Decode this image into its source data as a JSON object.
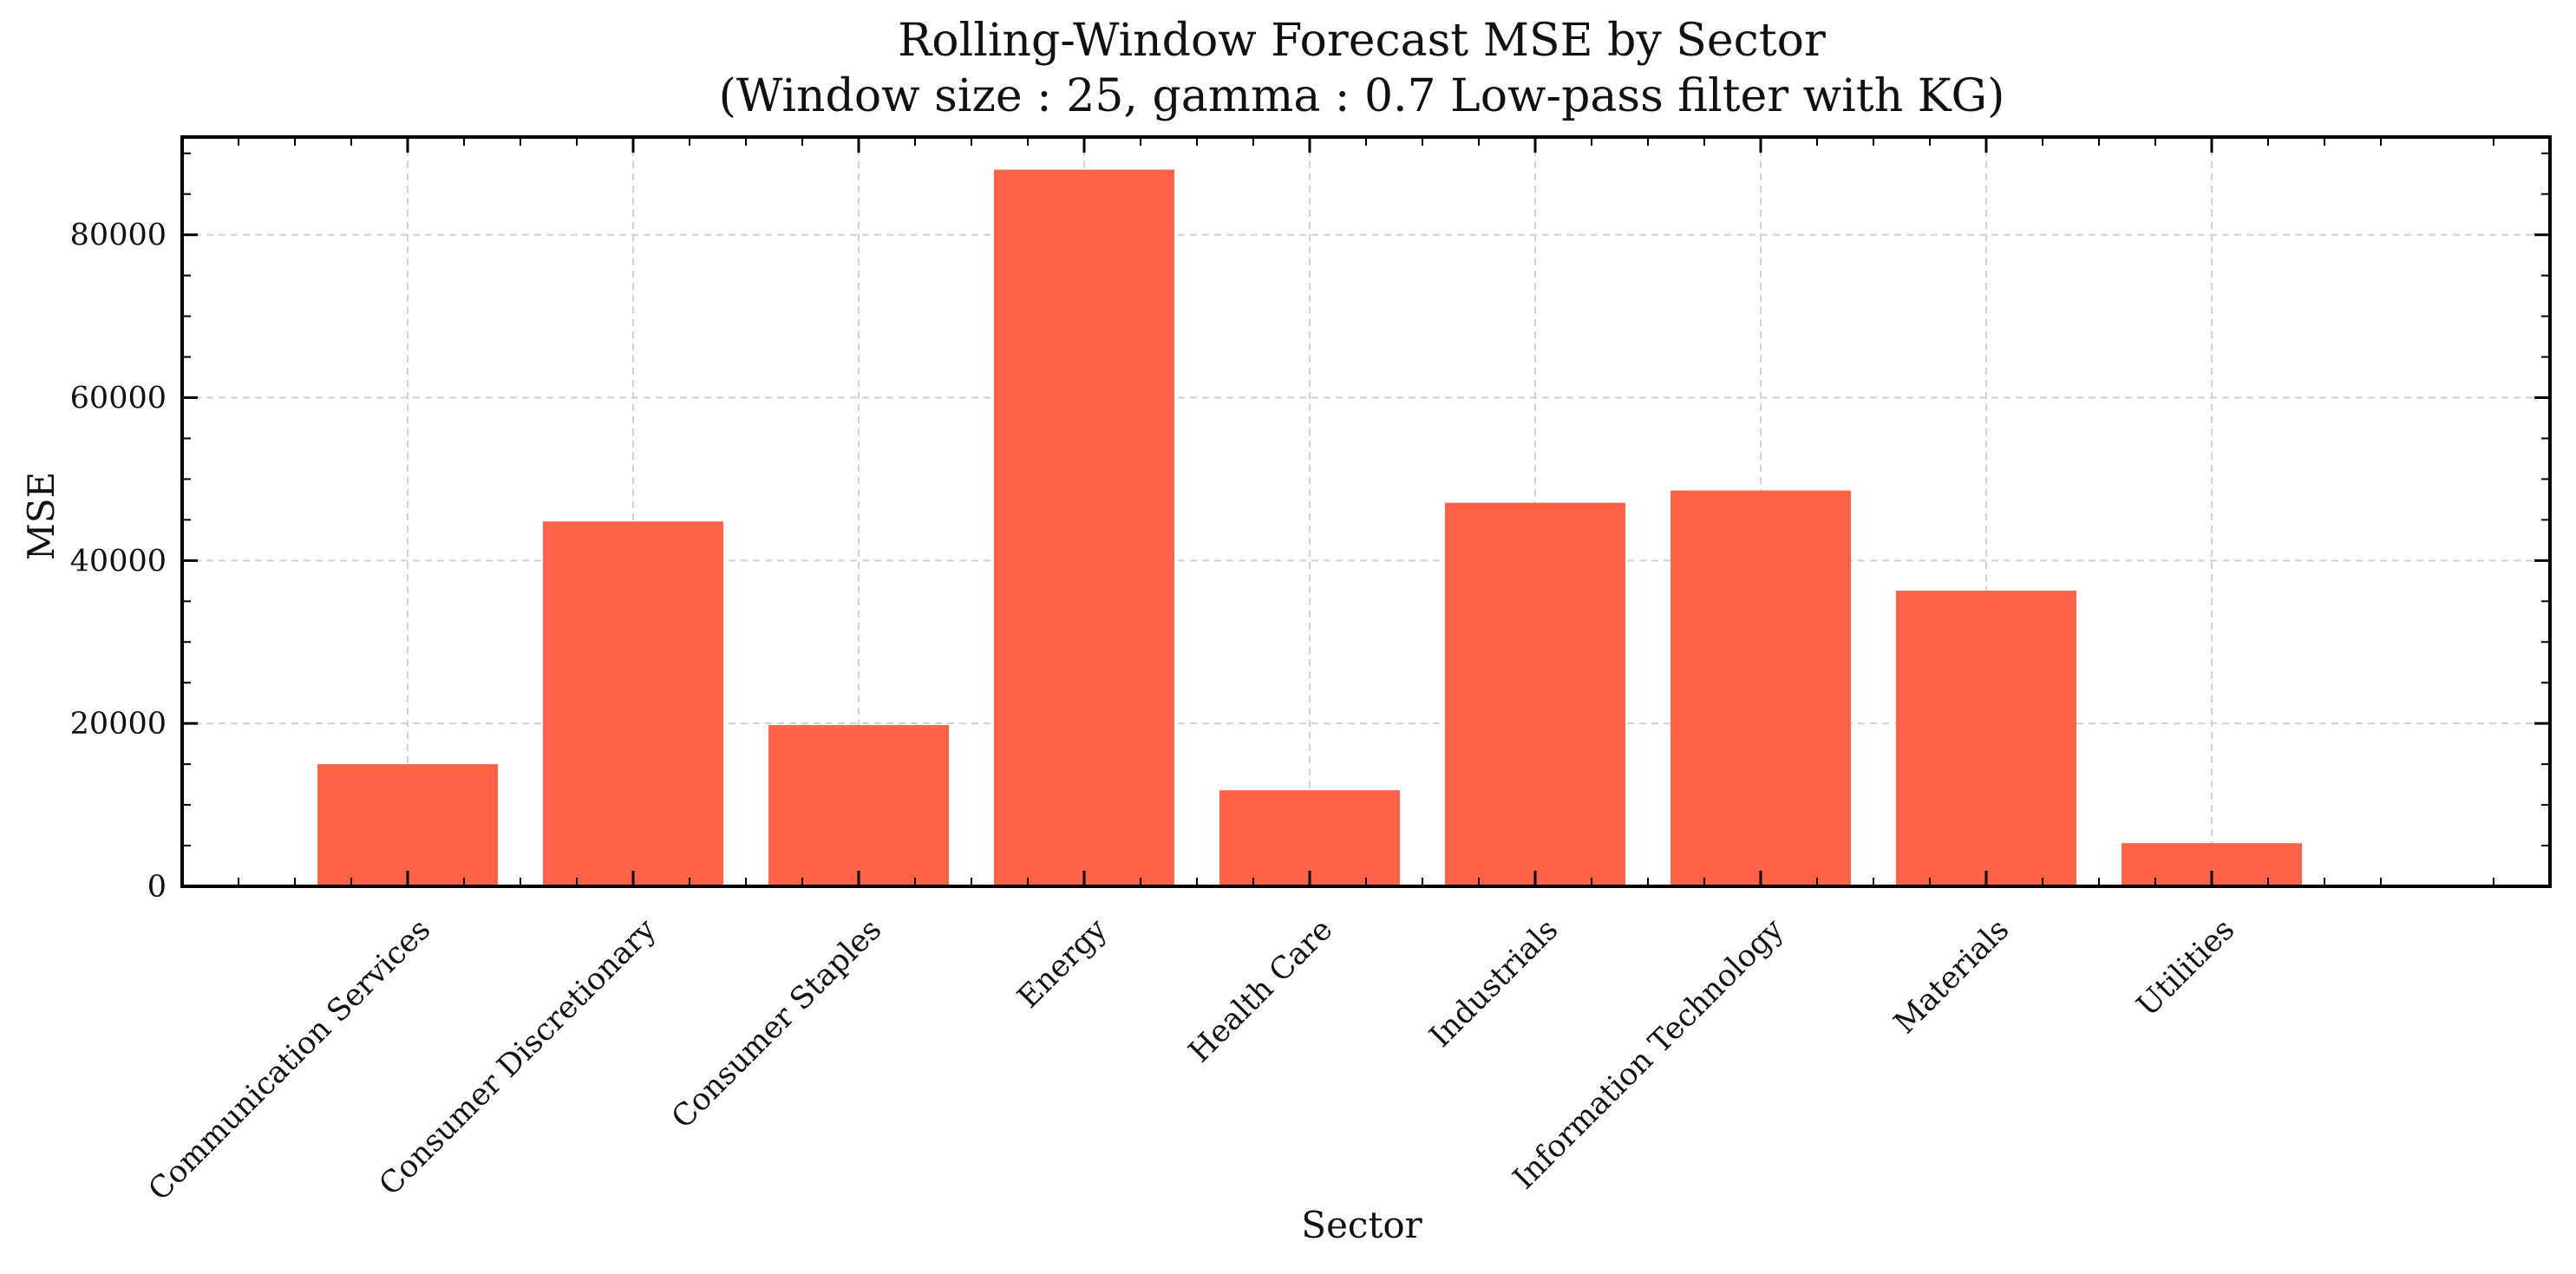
{
  "chart_data": {
    "type": "bar",
    "title": "Rolling-Window Forecast MSE by Sector",
    "subtitle": "(Window size : 25, gamma : 0.7 Low-pass filter with KG)",
    "xlabel": "Sector",
    "ylabel": "MSE",
    "categories": [
      "Communication Services",
      "Consumer Discretionary",
      "Consumer Staples",
      "Energy",
      "Health Care",
      "Industrials",
      "Information Technology",
      "Materials",
      "Utilities"
    ],
    "values": [
      15000,
      44800,
      19800,
      88000,
      11800,
      47100,
      48600,
      36300,
      5300
    ],
    "ylim": [
      0,
      92000
    ],
    "yticks": [
      0,
      20000,
      40000,
      60000,
      80000
    ],
    "ytick_labels": [
      "0",
      "20000",
      "40000",
      "60000",
      "80000"
    ],
    "grid": true,
    "bar_color": "#ff6347",
    "grid_color": "#d0d0d0"
  }
}
